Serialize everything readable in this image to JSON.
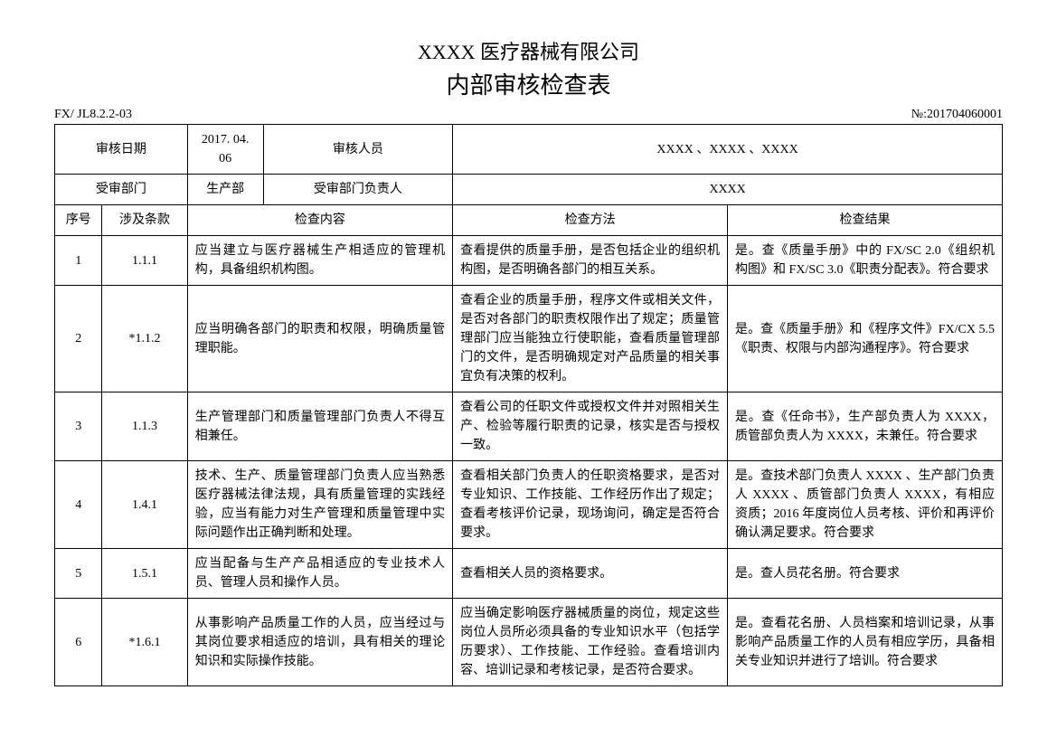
{
  "header": {
    "company": "XXXX 医疗器械有限公司",
    "title": "内部审核检查表",
    "doc_code": "FX/ JL8.2.2-03",
    "doc_no": "№:201704060001"
  },
  "info": {
    "audit_date_label": "审核日期",
    "audit_date": "2017. 04. 06",
    "auditor_label": "审核人员",
    "auditor": "XXXX 、XXXX 、XXXX",
    "dept_label": "受审部门",
    "dept": "生产部",
    "dept_head_label": "受审部门负责人",
    "dept_head": "XXXX"
  },
  "columns": {
    "seq": "序号",
    "clause": "涉及条款",
    "content": "检查内容",
    "method": "检查方法",
    "result": "检查结果"
  },
  "rows": [
    {
      "seq": "1",
      "clause": "1.1.1",
      "content": "应当建立与医疗器械生产相适应的管理机构，具备组织机构图。",
      "method": "查看提供的质量手册，是否包括企业的组织机构图，是否明确各部门的相互关系。",
      "result": "是。查《质量手册》中的 FX/SC 2.0《组织机构图》和 FX/SC 3.0《职责分配表》。符合要求"
    },
    {
      "seq": "2",
      "clause": "*1.1.2",
      "content": "应当明确各部门的职责和权限，明确质量管理职能。",
      "method": "查看企业的质量手册，程序文件或相关文件，是否对各部门的职责权限作出了规定；质量管理部门应当能独立行使职能，查看质量管理部门的文件，是否明确规定对产品质量的相关事宜负有决策的权利。",
      "result": "是。查《质量手册》和《程序文件》FX/CX 5.5 《职责、权限与内部沟通程序》。符合要求"
    },
    {
      "seq": "3",
      "clause": "1.1.3",
      "content": "生产管理部门和质量管理部门负责人不得互相兼任。",
      "method": "查看公司的任职文件或授权文件并对照相关生产、检验等履行职责的记录，核实是否与授权一致。",
      "result": "是。查《任命书》，生产部负责人为 XXXX，质管部负责人为 XXXX，未兼任。符合要求"
    },
    {
      "seq": "4",
      "clause": "1.4.1",
      "content": "技术、生产、质量管理部门负责人应当熟悉医疗器械法律法规，具有质量管理的实践经验，应当有能力对生产管理和质量管理中实际问题作出正确判断和处理。",
      "method": "查看相关部门负责人的任职资格要求，是否对专业知识、工作技能、工作经历作出了规定；查看考核评价记录，现场询问，确定是否符合要求。",
      "result": "是。查技术部门负责人 XXXX 、生产部门负责人 XXXX 、质管部门负责人 XXXX，有相应资质；2016 年度岗位人员考核、评价和再评价确认满足要求。符合要求"
    },
    {
      "seq": "5",
      "clause": "1.5.1",
      "content": "应当配备与生产产品相适应的专业技术人员、管理人员和操作人员。",
      "method": "查看相关人员的资格要求。",
      "result": "是。查人员花名册。符合要求"
    },
    {
      "seq": "6",
      "clause": "*1.6.1",
      "content": "从事影响产品质量工作的人员，应当经过与其岗位要求相适应的培训，具有相关的理论知识和实际操作技能。",
      "method": "应当确定影响医疗器械质量的岗位，规定这些岗位人员所必须具备的专业知识水平（包括学历要求）、工作技能、工作经验。查看培训内容、培训记录和考核记录，是否符合要求。",
      "result": "是。查看花名册、人员档案和培训记录，从事影响产品质量工作的人员有相应学历，具备相关专业知识并进行了培训。符合要求"
    }
  ]
}
